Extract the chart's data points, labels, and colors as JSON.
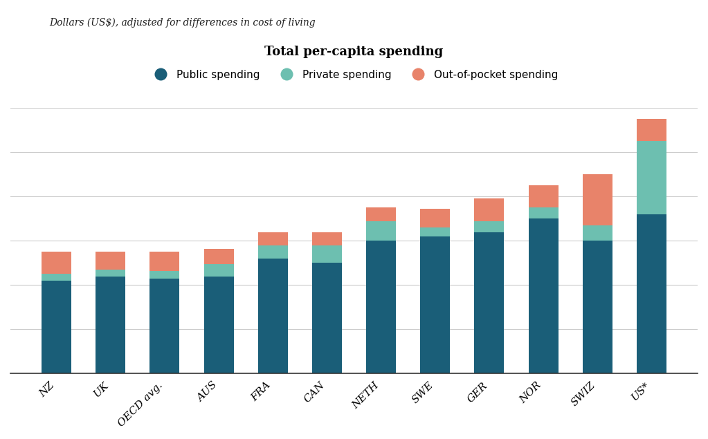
{
  "categories": [
    "NZ",
    "UK",
    "OECD avg.",
    "AUS",
    "FRA",
    "CAN",
    "NETH",
    "SWE",
    "GER",
    "NOR",
    "SWIZ",
    "US*"
  ],
  "public": [
    2100,
    2200,
    2150,
    2200,
    2600,
    2500,
    3000,
    3100,
    3200,
    3500,
    3000,
    3600
  ],
  "private": [
    150,
    150,
    170,
    270,
    300,
    400,
    450,
    200,
    250,
    250,
    350,
    1650
  ],
  "out_of_pocket": [
    500,
    400,
    430,
    350,
    300,
    300,
    310,
    430,
    500,
    500,
    1150,
    500
  ],
  "public_color": "#1a5e78",
  "private_color": "#6dbfb0",
  "oop_color": "#e8836a",
  "title": "Total per-capita spending",
  "subtitle": "Dollars (US$), adjusted for differences in cost of living",
  "legend_labels": [
    "Public spending",
    "Private spending",
    "Out-of-pocket spending"
  ],
  "background_color": "#ffffff",
  "bar_width": 0.55,
  "ylim": [
    0,
    6000
  ]
}
